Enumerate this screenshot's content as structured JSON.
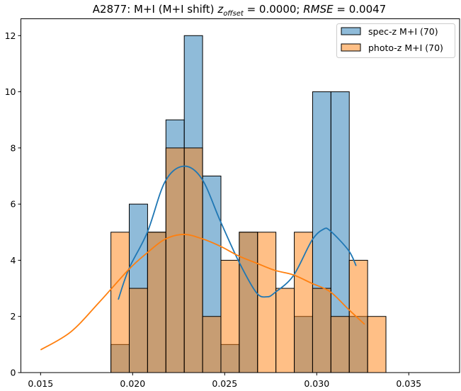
{
  "chart_data": {
    "type": "bar",
    "title": {
      "prefix": "A2877: M+I (M+I shift) ",
      "z": "z",
      "z_sub": "offset",
      "eq1": " = 0.0000; ",
      "rmse": "RMSE",
      "eq2": " = 0.0047"
    },
    "xlabel": "",
    "ylabel": "",
    "xlim": [
      0.01393,
      0.03776
    ],
    "ylim": [
      0,
      12.6
    ],
    "xticks": [
      0.015,
      0.02,
      0.025,
      0.03,
      0.035
    ],
    "xtick_labels": [
      "0.015",
      "0.020",
      "0.025",
      "0.030",
      "0.035"
    ],
    "yticks": [
      0,
      2,
      4,
      6,
      8,
      10,
      12
    ],
    "ytick_labels": [
      "0",
      "2",
      "4",
      "6",
      "8",
      "10",
      "12"
    ],
    "bin_start": 0.01882,
    "bin_width": 0.000996,
    "legend_position": "top-right",
    "grid": false,
    "series": [
      {
        "name": "spec-z M+I (70)",
        "color": "#1f77b4",
        "counts": [
          1,
          6,
          5,
          9,
          12,
          7,
          1,
          5,
          0,
          0,
          2,
          10,
          10,
          2,
          0,
          0,
          0,
          0
        ],
        "kde": {
          "x": [
            0.01922,
            0.0198,
            0.0208,
            0.02176,
            0.02277,
            0.02376,
            0.02476,
            0.02577,
            0.02672,
            0.0273,
            0.02773,
            0.02873,
            0.02973,
            0.03035,
            0.03073,
            0.03173,
            0.03214
          ],
          "y": [
            2.6,
            3.7,
            5.0,
            6.8,
            7.35,
            6.9,
            5.4,
            3.95,
            2.85,
            2.7,
            2.85,
            3.45,
            4.7,
            5.1,
            5.05,
            4.35,
            3.8
          ]
        }
      },
      {
        "name": "photo-z M+I (70)",
        "color": "#ff7f0e",
        "counts": [
          5,
          3,
          5,
          8,
          8,
          2,
          4,
          5,
          5,
          3,
          5,
          3,
          2,
          4,
          2,
          0,
          0,
          0
        ],
        "kde": {
          "x": [
            0.015,
            0.01664,
            0.01818,
            0.0198,
            0.0208,
            0.02176,
            0.02277,
            0.02376,
            0.02476,
            0.02577,
            0.02672,
            0.02773,
            0.02873,
            0.02973,
            0.03073,
            0.03173,
            0.0326
          ],
          "y": [
            0.81,
            1.45,
            2.5,
            3.68,
            4.27,
            4.75,
            4.92,
            4.77,
            4.5,
            4.15,
            3.9,
            3.64,
            3.48,
            3.18,
            2.88,
            2.25,
            1.72
          ]
        }
      }
    ]
  }
}
